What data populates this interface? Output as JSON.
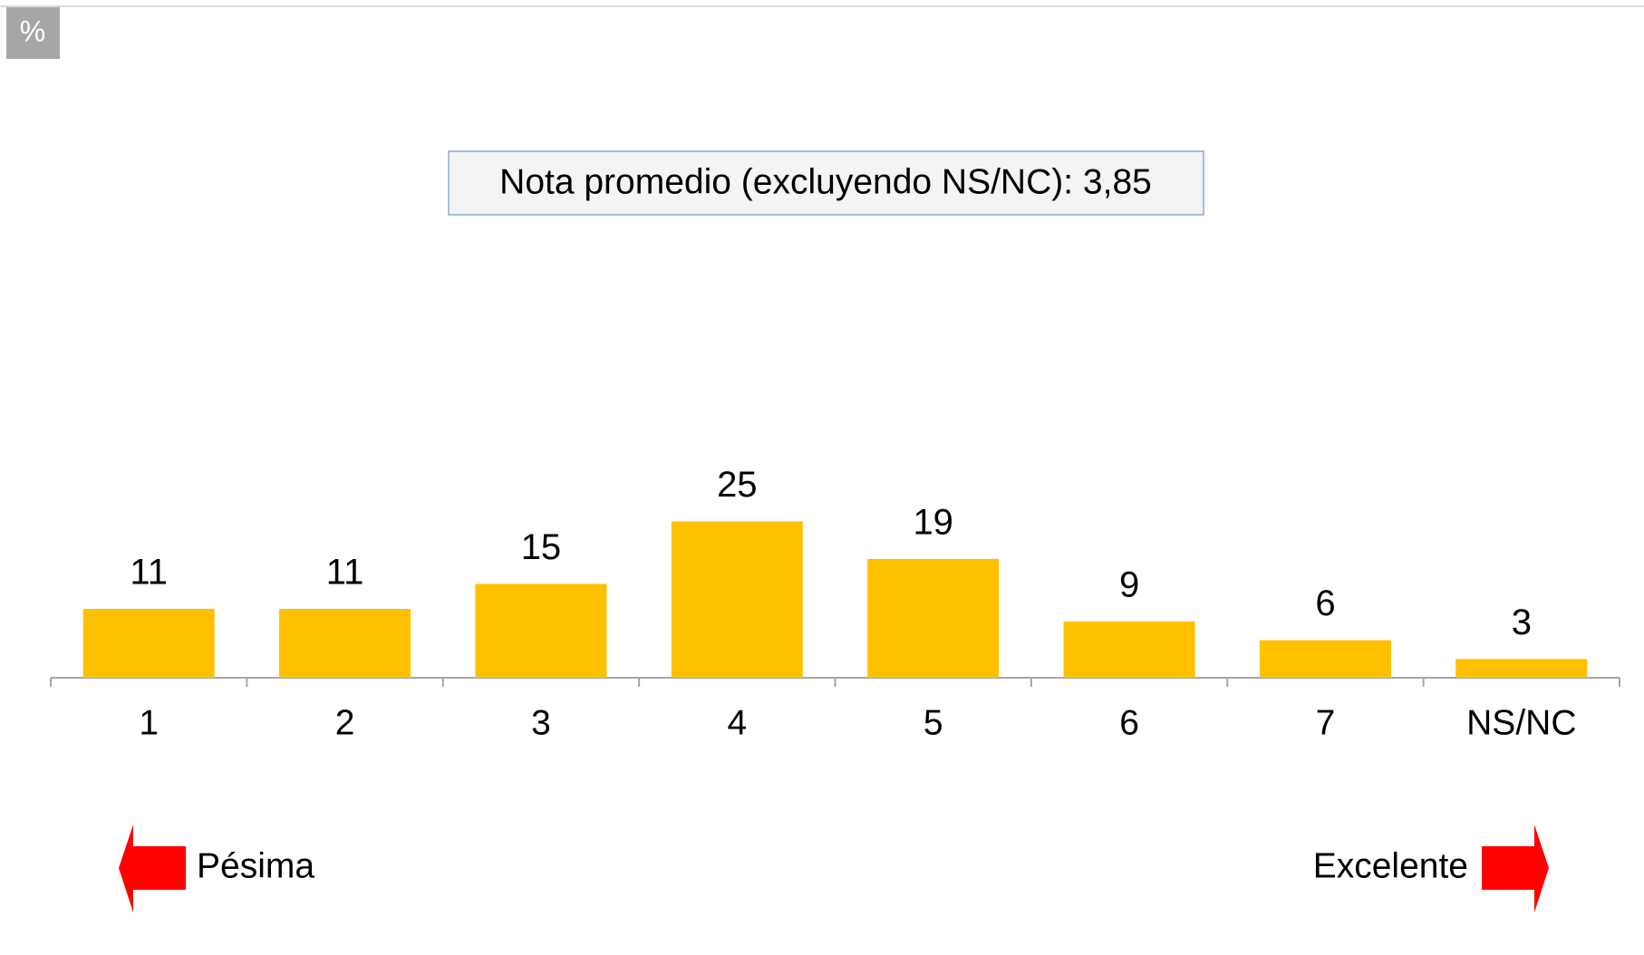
{
  "chart_data": {
    "type": "bar",
    "unit": "%",
    "annotation": "Nota promedio (excluyendo NS/NC): 3,85",
    "categories": [
      "1",
      "2",
      "3",
      "4",
      "5",
      "6",
      "7",
      "NS/NC"
    ],
    "values": [
      11,
      11,
      15,
      25,
      19,
      9,
      6,
      3
    ],
    "color": "#ffc000",
    "scale_left_label": "Pésima",
    "scale_right_label": "Excelente"
  }
}
